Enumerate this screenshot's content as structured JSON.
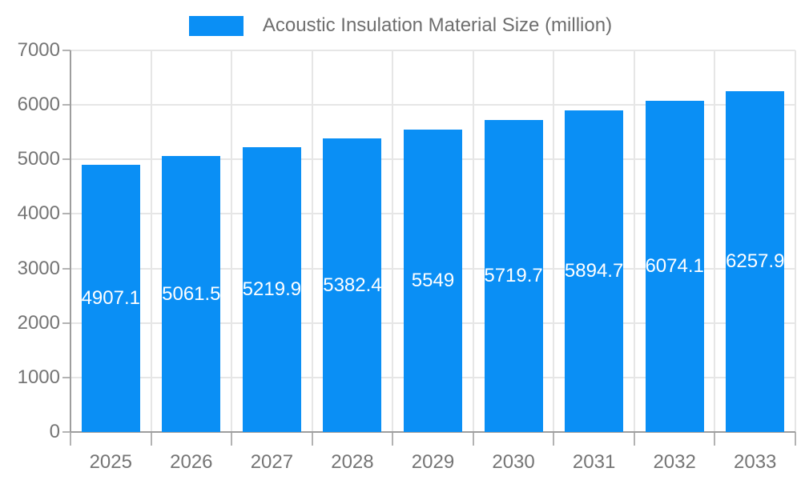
{
  "legend": {
    "label": "Acoustic Insulation Material Size (million)"
  },
  "chart_data": {
    "type": "bar",
    "title": "",
    "xlabel": "",
    "ylabel": "",
    "categories": [
      "2025",
      "2026",
      "2027",
      "2028",
      "2029",
      "2030",
      "2031",
      "2032",
      "2033"
    ],
    "series": [
      {
        "name": "Acoustic Insulation Material Size (million)",
        "values": [
          4907.1,
          5061.5,
          5219.9,
          5382.4,
          5549,
          5719.7,
          5894.7,
          6074.1,
          6257.9
        ]
      }
    ],
    "value_labels": [
      "4907.1",
      "5061.5",
      "5219.9",
      "5382.4",
      "5549",
      "5719.7",
      "5894.7",
      "6074.1",
      "6257.9"
    ],
    "ylim": [
      0,
      7000
    ],
    "ytick_step": 1000,
    "ytick_labels": [
      "0",
      "1000",
      "2000",
      "3000",
      "4000",
      "5000",
      "6000",
      "7000"
    ],
    "grid": true,
    "legend_position": "top-center",
    "value_label_position": "inside-middle"
  },
  "style": {
    "bar_color": "#0A8FF5",
    "grid_color": "#E6E6E6",
    "axis_color": "#9E9E9E",
    "tick_color": "#B3B3B3",
    "axis_label_color": "#757575",
    "value_label_color": "#FFFFFF",
    "legend_text_color": "#6E6E6E"
  }
}
